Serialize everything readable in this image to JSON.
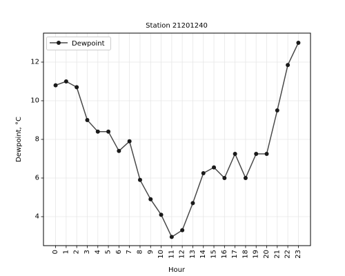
{
  "chart_data": {
    "type": "line",
    "title": "Station 21201240",
    "xlabel": "Hour",
    "ylabel": "Dewpoint, °C",
    "x": [
      0,
      1,
      2,
      3,
      4,
      5,
      6,
      7,
      8,
      9,
      10,
      11,
      12,
      13,
      14,
      15,
      16,
      17,
      18,
      19,
      20,
      21,
      22,
      23
    ],
    "x_tick_labels": [
      "0",
      "1",
      "2",
      "3",
      "4",
      "5",
      "6",
      "7",
      "8",
      "9",
      "10",
      "11",
      "12",
      "13",
      "14",
      "15",
      "16",
      "17",
      "18",
      "19",
      "20",
      "21",
      "22",
      "23"
    ],
    "y_ticks": [
      4,
      6,
      8,
      10,
      12
    ],
    "y_tick_labels": [
      "4",
      "6",
      "8",
      "10",
      "12"
    ],
    "xlim": [
      -1.15,
      24.15
    ],
    "ylim": [
      2.5,
      13.5
    ],
    "grid": true,
    "legend_position": "top-left",
    "series": [
      {
        "name": "Dewpoint",
        "color": "#1a1a1a",
        "values": [
          10.8,
          11.0,
          10.7,
          9.0,
          8.4,
          8.4,
          7.4,
          7.9,
          5.9,
          4.9,
          4.1,
          2.95,
          3.3,
          4.7,
          6.25,
          6.55,
          6.0,
          7.25,
          6.0,
          7.25,
          7.25,
          9.5,
          11.85,
          13.0
        ]
      }
    ]
  }
}
